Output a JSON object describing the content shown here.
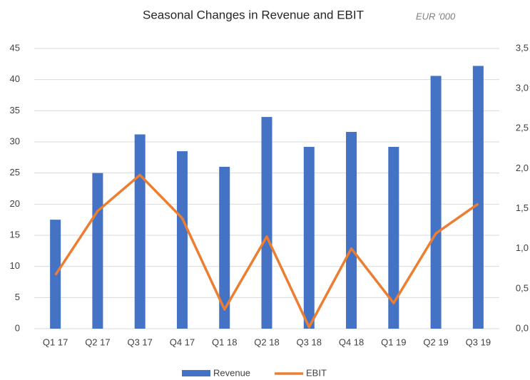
{
  "chart_data": {
    "type": "bar",
    "title": "Seasonal Changes in Revenue and EBIT",
    "subtitle": "EUR '000",
    "categories": [
      "Q1 17",
      "Q2 17",
      "Q3 17",
      "Q4 17",
      "Q1 18",
      "Q2 18",
      "Q3 18",
      "Q4 18",
      "Q1 19",
      "Q2 19",
      "Q3 19"
    ],
    "series": [
      {
        "name": "Revenue",
        "type": "bar",
        "color": "#4472c4",
        "values": [
          17.5,
          25,
          31.2,
          28.5,
          26,
          34,
          29.2,
          31.6,
          29.2,
          40.6,
          42.2
        ]
      },
      {
        "name": "EBIT",
        "type": "line",
        "axis": "y2",
        "color": "#ed7d31",
        "values": [
          0.67,
          1.47,
          1.92,
          1.38,
          0.24,
          1.15,
          0.02,
          1.0,
          0.32,
          1.19,
          1.56
        ]
      }
    ],
    "ylim": [
      0,
      45
    ],
    "yticks": [
      0,
      5,
      10,
      15,
      20,
      25,
      30,
      35,
      40,
      45
    ],
    "y2lim": [
      0,
      3.5
    ],
    "y2ticks": [
      {
        "value": 0,
        "label": "0,0"
      },
      {
        "value": 0.5,
        "label": "0,5"
      },
      {
        "value": 1,
        "label": "1,0"
      },
      {
        "value": 1.5,
        "label": "1,5"
      },
      {
        "value": 2,
        "label": "2,0"
      },
      {
        "value": 2.5,
        "label": "2,5"
      },
      {
        "value": 3,
        "label": "3,0"
      },
      {
        "value": 3.5,
        "label": "3,5"
      }
    ],
    "grid": true,
    "legend": "bottom"
  }
}
